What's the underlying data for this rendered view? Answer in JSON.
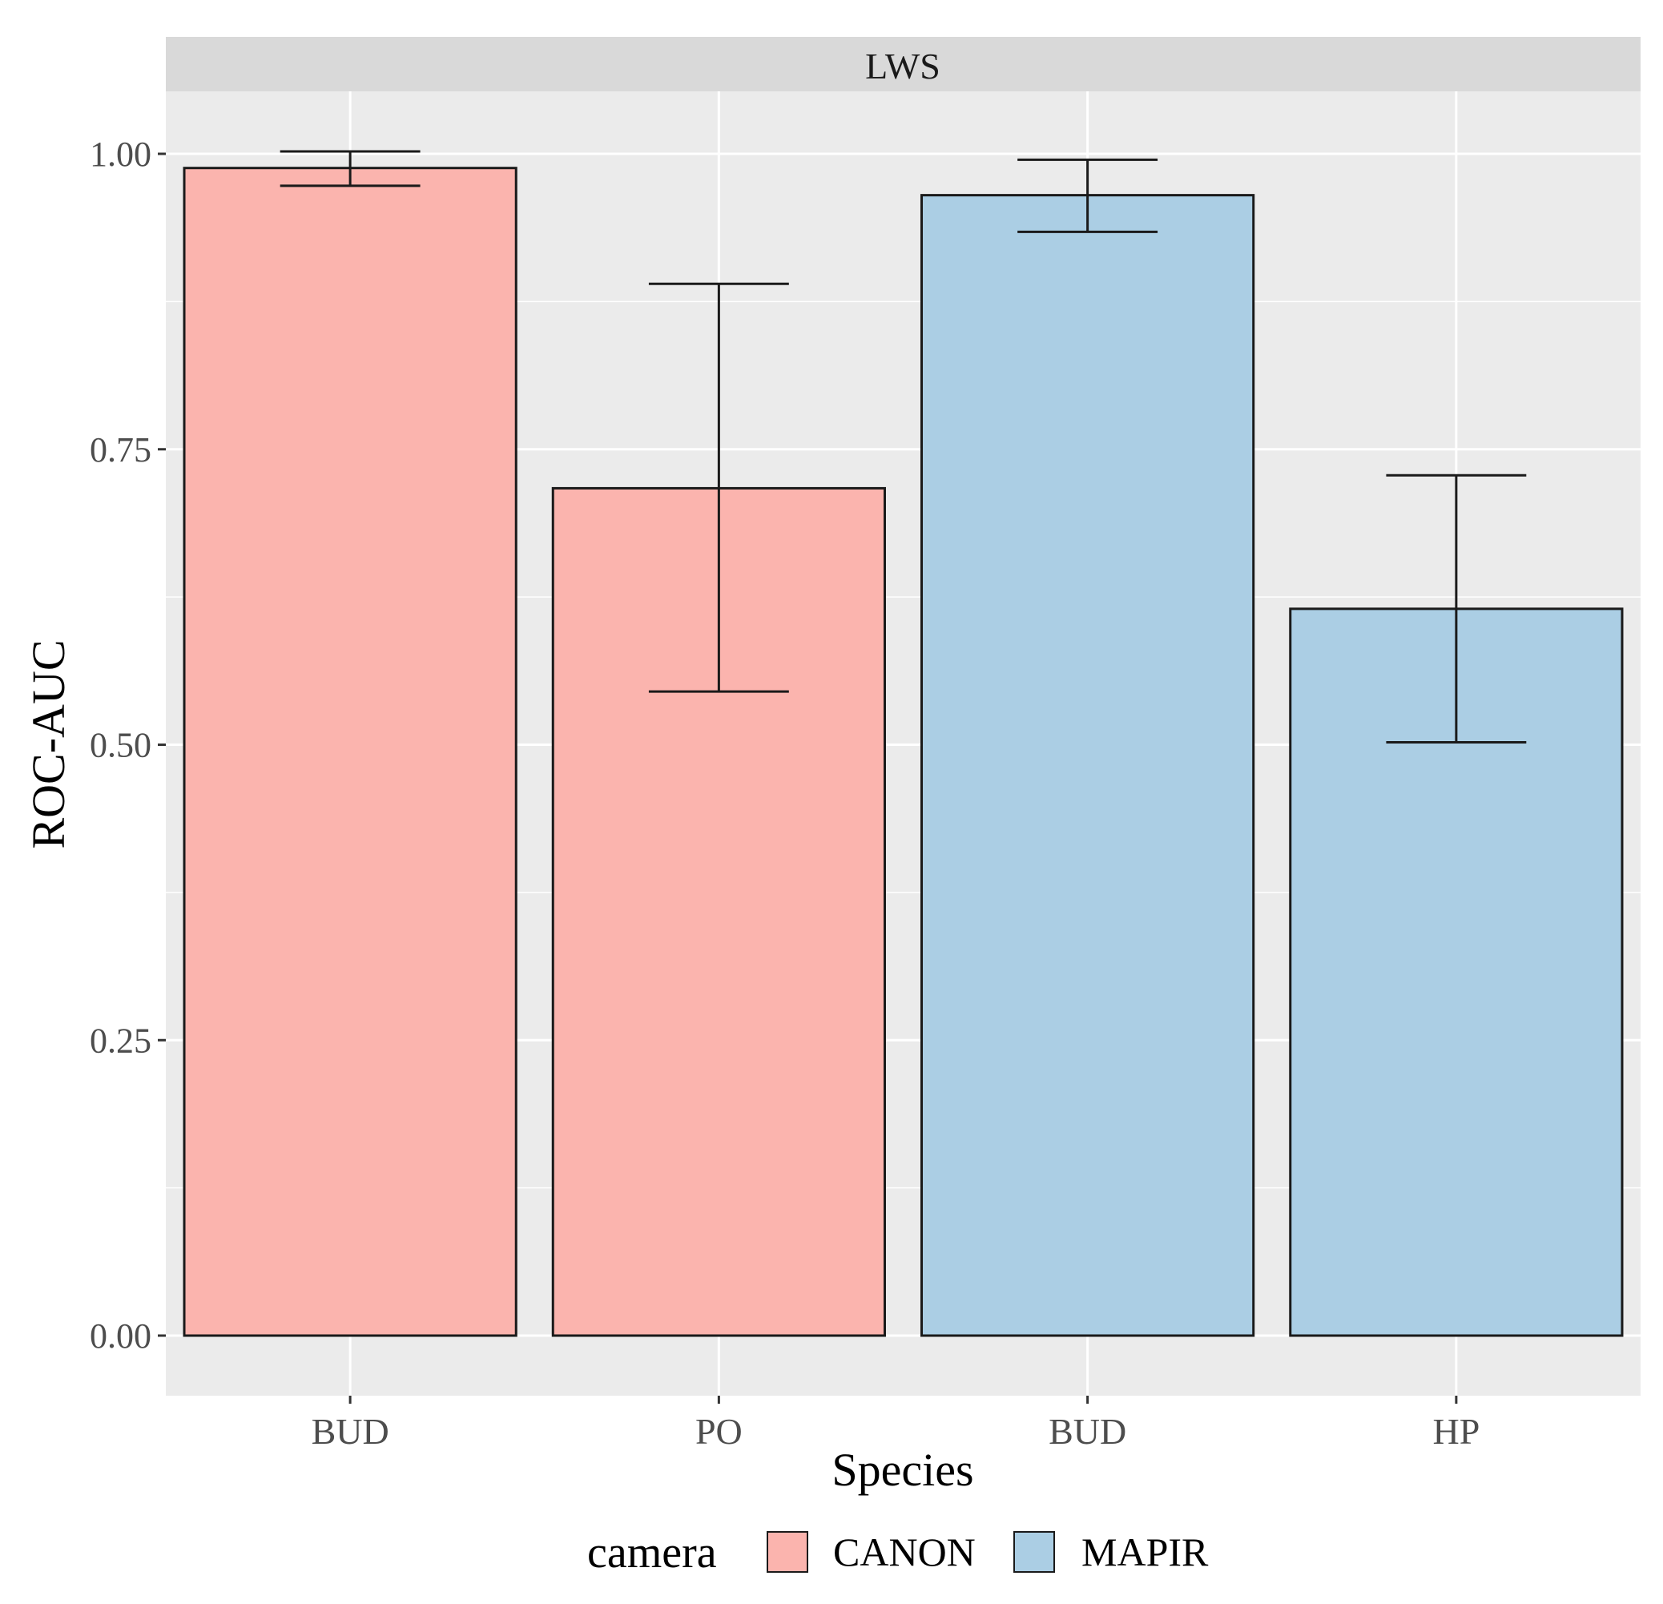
{
  "chart_data": {
    "type": "bar",
    "facet_label": "LWS",
    "categories": [
      "BUD",
      "PO",
      "BUD",
      "HP"
    ],
    "values": [
      0.988,
      0.717,
      0.965,
      0.615
    ],
    "error_low": [
      0.973,
      0.545,
      0.934,
      0.502
    ],
    "error_high": [
      1.002,
      0.89,
      0.995,
      0.728
    ],
    "groups": [
      "CANON",
      "CANON",
      "MAPIR",
      "MAPIR"
    ],
    "xlabel": "Species",
    "ylabel": "ROC-AUC",
    "ylim": [
      -0.05,
      1.05
    ],
    "yticks": [
      0.0,
      0.25,
      0.5,
      0.75,
      1.0
    ],
    "ytick_labels": [
      "0.00",
      "0.25",
      "0.50",
      "0.75",
      "1.00"
    ],
    "grid": true,
    "legend": {
      "title": "camera",
      "placement": "bottom",
      "items": [
        {
          "label": "CANON",
          "color": "#FBB4AE"
        },
        {
          "label": "MAPIR",
          "color": "#ABCEE4"
        }
      ]
    },
    "colors": {
      "panel_bg": "#EBEBEB",
      "strip_bg": "#D9D9D9",
      "grid": "#FFFFFF",
      "bar_outline": "#1A1A1A",
      "axis_text": "#4D4D4D"
    }
  }
}
